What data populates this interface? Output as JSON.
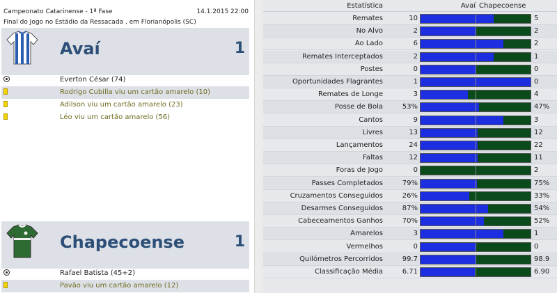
{
  "match": {
    "competition": "Campeonato Catarinense - 1ª Fase",
    "datetime": "14.1.2015 22:00",
    "venue": "Final do Jogo no Estádio da Ressacada , em Florianópolis (SC)"
  },
  "home": {
    "name": "Avaí",
    "score": "1",
    "shirt": {
      "stripe1": "#ffffff",
      "stripe2": "#2a5db0"
    },
    "events": [
      {
        "type": "goal",
        "text": "Everton César (74)"
      },
      {
        "type": "card",
        "text": "Rodrigo Cubilla viu um cartão amarelo (10)"
      },
      {
        "type": "card",
        "text": "Adilson viu um cartão amarelo (23)"
      },
      {
        "type": "card",
        "text": "Léo viu um cartão amarelo (56)"
      }
    ]
  },
  "away": {
    "name": "Chapecoense",
    "score": "1",
    "shirt": {
      "main": "#2e6b33",
      "trim": "#f2f2f2"
    },
    "events": [
      {
        "type": "goal",
        "text": "Rafael Batista (45+2)"
      },
      {
        "type": "card",
        "text": "Pavão viu um cartão amarelo (12)"
      }
    ]
  },
  "stats_header": {
    "stat": "Estatística",
    "home": "Avaí",
    "away": "Chapecoense"
  },
  "colors": {
    "home_bar": "#1d2ee0",
    "away_bar": "#0b4a1a",
    "team_text": "#2d4f77",
    "card": "#f2d400"
  },
  "stats": [
    {
      "label": "Remates",
      "home": "10",
      "away": "5",
      "share": 0.667
    },
    {
      "label": "No Alvo",
      "home": "2",
      "away": "2",
      "share": 0.5
    },
    {
      "label": "Ao Lado",
      "home": "6",
      "away": "2",
      "share": 0.75
    },
    {
      "label": "Remates Interceptados",
      "home": "2",
      "away": "1",
      "share": 0.667
    },
    {
      "label": "Postes",
      "home": "0",
      "away": "0",
      "share": 0.5
    },
    {
      "label": "Oportunidades Flagrantes",
      "home": "1",
      "away": "0",
      "share": 1.0
    },
    {
      "label": "Remates de Longe",
      "home": "3",
      "away": "4",
      "share": 0.429
    },
    {
      "label": "Posse de Bola",
      "home": "53%",
      "away": "47%",
      "share": 0.53
    },
    {
      "label": "Cantos",
      "home": "9",
      "away": "3",
      "share": 0.75
    },
    {
      "label": "Livres",
      "home": "13",
      "away": "12",
      "share": 0.52
    },
    {
      "label": "Lançamentos",
      "home": "24",
      "away": "22",
      "share": 0.522
    },
    {
      "label": "Faltas",
      "home": "12",
      "away": "11",
      "share": 0.522
    },
    {
      "label": "Foras de Jogo",
      "home": "0",
      "away": "2",
      "share": 0.0
    },
    {
      "label": "Passes Completados",
      "home": "79%",
      "away": "75%",
      "share": 0.513
    },
    {
      "label": "Cruzamentos Conseguidos",
      "home": "26%",
      "away": "33%",
      "share": 0.441
    },
    {
      "label": "Desarmes Conseguidos",
      "home": "87%",
      "away": "54%",
      "share": 0.617
    },
    {
      "label": "Cabeceamentos Ganhos",
      "home": "70%",
      "away": "52%",
      "share": 0.574
    },
    {
      "label": "Amarelos",
      "home": "3",
      "away": "1",
      "share": 0.75
    },
    {
      "label": "Vermelhos",
      "home": "0",
      "away": "0",
      "share": 0.5
    },
    {
      "label": "Quilómetros Percorridos",
      "home": "99.7",
      "away": "98.9",
      "share": 0.502
    },
    {
      "label": "Classificação Média",
      "home": "6.71",
      "away": "6.90",
      "share": 0.493
    }
  ]
}
